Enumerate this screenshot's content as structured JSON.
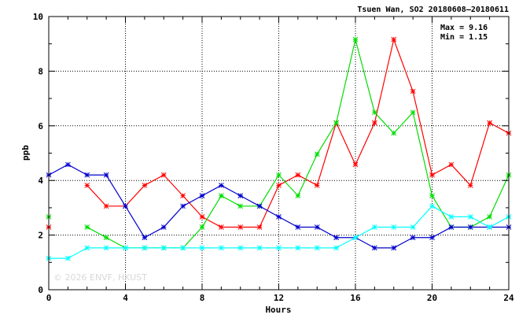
{
  "chart_data": {
    "type": "line",
    "title": "Tsuen Wan, SO2 20180608–20180611",
    "stats": {
      "max": "Max = 9.16",
      "min": "Min = 1.15"
    },
    "xlabel": "Hours",
    "ylabel": "ppb",
    "xlim": [
      0,
      24
    ],
    "ylim": [
      0,
      10
    ],
    "xticks": [
      0,
      4,
      8,
      12,
      16,
      20,
      24
    ],
    "yticks": [
      0,
      2,
      4,
      6,
      8,
      10
    ],
    "x_minor_step": 1,
    "y_minor_step": 1,
    "grid": true,
    "watermark": "© 2026  ENVF, HKUST",
    "x": [
      0,
      1,
      2,
      3,
      4,
      5,
      6,
      7,
      8,
      9,
      10,
      11,
      12,
      13,
      14,
      15,
      16,
      17,
      18,
      19,
      20,
      21,
      22,
      23,
      24
    ],
    "series": [
      {
        "color": "#ff0000",
        "values": [
          2.29,
          null,
          3.82,
          3.06,
          3.06,
          3.82,
          4.2,
          3.44,
          2.67,
          2.29,
          2.29,
          2.29,
          3.82,
          4.2,
          3.82,
          6.11,
          4.58,
          6.11,
          9.16,
          7.26,
          4.2,
          4.58,
          3.82,
          6.11,
          5.73
        ]
      },
      {
        "color": "#00dd00",
        "values": [
          2.67,
          null,
          2.29,
          1.91,
          1.53,
          1.53,
          1.53,
          1.53,
          2.29,
          3.44,
          3.06,
          3.06,
          4.2,
          3.44,
          4.96,
          6.11,
          9.16,
          6.49,
          5.73,
          6.49,
          3.44,
          2.29,
          2.29,
          2.67,
          4.2
        ]
      },
      {
        "color": "#0000cc",
        "values": [
          4.2,
          4.58,
          4.2,
          4.2,
          3.06,
          1.91,
          2.29,
          3.06,
          3.44,
          3.82,
          3.44,
          3.06,
          2.67,
          2.29,
          2.29,
          1.91,
          1.91,
          1.53,
          1.53,
          1.91,
          1.91,
          2.29,
          2.29,
          2.29,
          2.29
        ]
      },
      {
        "color": "#00ffff",
        "values": [
          1.15,
          1.15,
          1.53,
          1.53,
          1.53,
          1.53,
          1.53,
          1.53,
          1.53,
          1.53,
          1.53,
          1.53,
          1.53,
          1.53,
          1.53,
          1.53,
          1.91,
          2.29,
          2.29,
          2.29,
          3.06,
          2.67,
          2.67,
          2.29,
          2.67
        ]
      }
    ]
  }
}
